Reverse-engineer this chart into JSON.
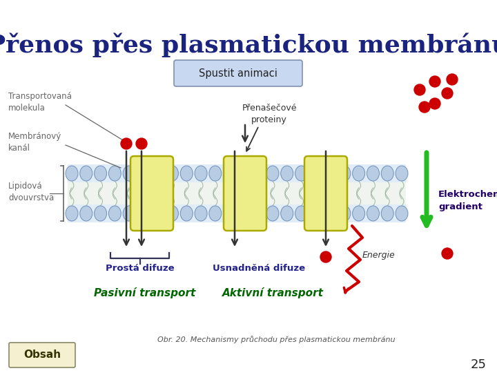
{
  "title": "Přenos přes plasmatickou membránu",
  "title_color": "#1a237e",
  "bg_color": "#ffffff",
  "label_transportovana": "Transportovaná\nmolekula",
  "label_membranovy": "Membránový\nkanál",
  "label_lipidova": "Lipidová\ndvouvrstva",
  "label_prenasecove": "Přenašečové\nproteiny",
  "label_spustit": "Spustit animaci",
  "label_elektrochemicky": "Elektrochemický\ngradient",
  "label_energie": "Energie",
  "label_prosta": "Prostá difuze",
  "label_usnadnena": "Usnadněná difuze",
  "label_pasivni": "Pasivní transport",
  "label_aktivni": "Aktivní transport",
  "label_obsah": "Obsah",
  "label_caption": "Obr. 20. Mechanismy průchodu přes plasmatickou membránu",
  "label_page": "25",
  "protein_color": "#eeee88",
  "protein_border": "#aaaa00",
  "mol_color": "#cc0000",
  "head_color": "#b8cce4",
  "head_border": "#7090b8",
  "mem_fill": "#e0ecf8",
  "tail_color": "#c8d8c8",
  "gradient_color": "#22bb22",
  "energy_color": "#cc0000",
  "arrow_color": "#333333",
  "label_side_color": "#666666",
  "label_blue": "#22228a",
  "label_green": "#006600",
  "label_purple": "#220066",
  "label_dark": "#333333",
  "spustit_fill": "#c8d8f0",
  "spustit_border": "#8090b0",
  "obsah_fill": "#f5f0d0",
  "obsah_border": "#888866"
}
